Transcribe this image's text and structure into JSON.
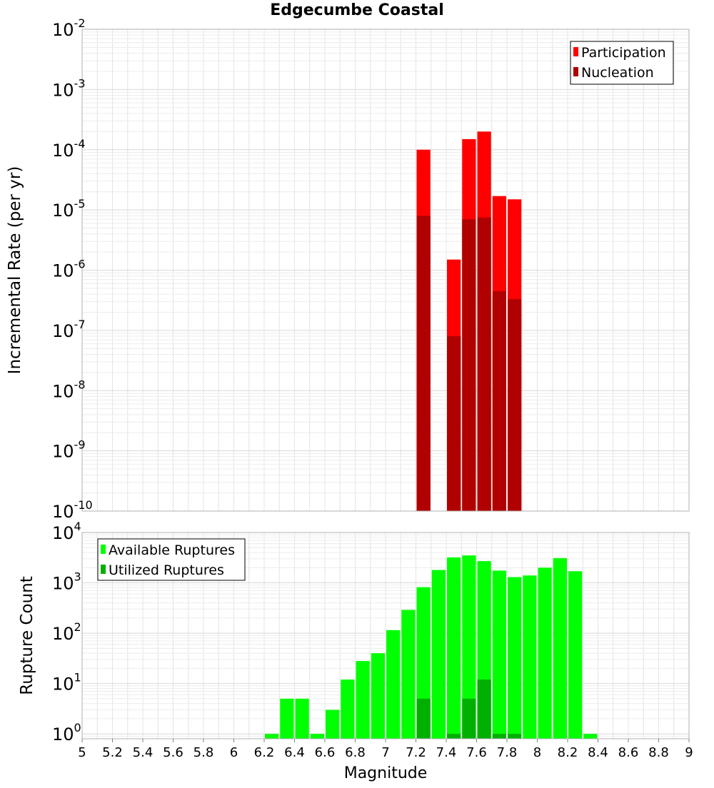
{
  "title": "Edgecumbe Coastal",
  "chart_data": [
    {
      "type": "bar",
      "panel": "top",
      "xlabel": "Magnitude",
      "ylabel": "Incremental Rate (per yr)",
      "x_scale": "linear",
      "y_scale": "log",
      "xlim": [
        5,
        9
      ],
      "ylim": [
        1e-10,
        0.01
      ],
      "y_tick_exponents": [
        "-2",
        "-3",
        "-4",
        "-5",
        "-6",
        "-7",
        "-8",
        "-9",
        "-10"
      ],
      "grid": true,
      "legend_position": "top-right",
      "series": [
        {
          "name": "Participation",
          "color": "#ff0000",
          "x": [
            7.25,
            7.45,
            7.55,
            7.65,
            7.75,
            7.85
          ],
          "values": [
            0.0001,
            1.5e-06,
            0.00015,
            0.0002,
            1.7e-05,
            1.5e-05
          ]
        },
        {
          "name": "Nucleation",
          "color": "#b00000",
          "x": [
            7.25,
            7.45,
            7.55,
            7.65,
            7.75,
            7.85
          ],
          "values": [
            8e-06,
            8e-08,
            7e-06,
            7.5e-06,
            4.5e-07,
            3.3e-07
          ]
        }
      ]
    },
    {
      "type": "bar",
      "panel": "bottom",
      "xlabel": "Magnitude",
      "ylabel": "Rupture Count",
      "x_scale": "linear",
      "y_scale": "log",
      "xlim": [
        5,
        9
      ],
      "ylim": [
        0.8,
        10000
      ],
      "y_tick_exponents": [
        "4",
        "3",
        "2",
        "1",
        "0"
      ],
      "x_tick_labels": [
        "5",
        "5.2",
        "5.4",
        "5.6",
        "5.8",
        "6",
        "6.2",
        "6.4",
        "6.6",
        "6.8",
        "7",
        "7.2",
        "7.4",
        "7.6",
        "7.8",
        "8",
        "8.2",
        "8.4",
        "8.6",
        "8.8",
        "9"
      ],
      "grid": true,
      "legend_position": "top-left",
      "series": [
        {
          "name": "Available Ruptures",
          "color": "#00ff00",
          "x": [
            6.25,
            6.35,
            6.45,
            6.55,
            6.65,
            6.75,
            6.85,
            6.95,
            7.05,
            7.15,
            7.25,
            7.35,
            7.45,
            7.55,
            7.65,
            7.75,
            7.85,
            7.95,
            8.05,
            8.15,
            8.25,
            8.35
          ],
          "values": [
            1,
            5,
            5,
            1,
            3,
            12,
            28,
            40,
            115,
            290,
            820,
            1800,
            3200,
            3500,
            2700,
            1750,
            1300,
            1400,
            2000,
            3100,
            1700,
            1
          ]
        },
        {
          "name": "Utilized Ruptures",
          "color": "#00b000",
          "x": [
            7.25,
            7.45,
            7.55,
            7.65,
            7.75,
            7.85
          ],
          "values": [
            5,
            1,
            5,
            12,
            1,
            1
          ]
        }
      ]
    }
  ]
}
